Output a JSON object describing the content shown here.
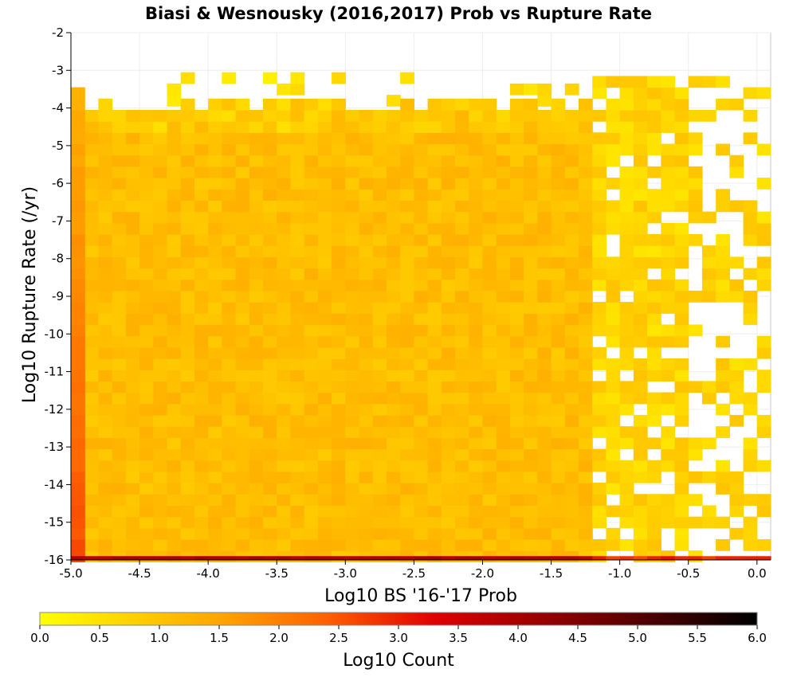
{
  "chart_data": {
    "type": "heatmap",
    "title": "Biasi & Wesnousky (2016,2017) Prob vs Rupture Rate",
    "xlabel": "Log10 BS '16-'17 Prob",
    "ylabel": "Log10 Rupture Rate (/yr)",
    "xlim": [
      -5.0,
      0.1
    ],
    "ylim": [
      -16,
      -2
    ],
    "x_ticks": [
      "-5.0",
      "-4.5",
      "-4.0",
      "-3.5",
      "-3.0",
      "-2.5",
      "-2.0",
      "-1.5",
      "-1.0",
      "-0.5",
      "0.0"
    ],
    "x_tick_values": [
      -5.0,
      -4.5,
      -4.0,
      -3.5,
      -3.0,
      -2.5,
      -2.0,
      -1.5,
      -1.0,
      -0.5,
      0.0
    ],
    "y_ticks": [
      "-2",
      "-3",
      "-4",
      "-5",
      "-6",
      "-7",
      "-8",
      "-9",
      "-10",
      "-11",
      "-12",
      "-13",
      "-14",
      "-15",
      "-16"
    ],
    "y_tick_values": [
      -2,
      -3,
      -4,
      -5,
      -6,
      -7,
      -8,
      -9,
      -10,
      -11,
      -12,
      -13,
      -14,
      -15,
      -16
    ],
    "bin_width": 0.1,
    "bin_height": 0.3,
    "grid": true,
    "colorbar": {
      "label": "Log10 Count",
      "range": [
        0.0,
        6.0
      ],
      "ticks": [
        "0.0",
        "0.5",
        "1.0",
        "1.5",
        "2.0",
        "2.5",
        "3.0",
        "3.5",
        "4.0",
        "4.5",
        "5.0",
        "5.5",
        "6.0"
      ],
      "tick_values": [
        0.0,
        0.5,
        1.0,
        1.5,
        2.0,
        2.5,
        3.0,
        3.5,
        4.0,
        4.5,
        5.0,
        5.5,
        6.0
      ],
      "colors": [
        "#ffff00",
        "#ffa500",
        "#ff6000",
        "#e00000",
        "#800000",
        "#000000"
      ]
    },
    "series": [
      {
        "name": "bottom row (rate ≈ -16)",
        "x_start": -4.95,
        "x_end": 0.05,
        "value": 3.9
      },
      {
        "name": "left column (prob ≈ -5.0)",
        "y_start": -15.9,
        "y_end": -3.5,
        "value_start": 2.6,
        "value_end": 1.3
      },
      {
        "name": "interior band",
        "x_start": -4.95,
        "x_end": -1.25,
        "y_start": -15.9,
        "y_end": -4.1,
        "value_mean": 1.1
      },
      {
        "name": "sparse band",
        "x_start": -1.15,
        "x_end": 0.05,
        "y_start": -15.9,
        "y_end": -2.8,
        "value_mean": 0.7
      }
    ]
  }
}
